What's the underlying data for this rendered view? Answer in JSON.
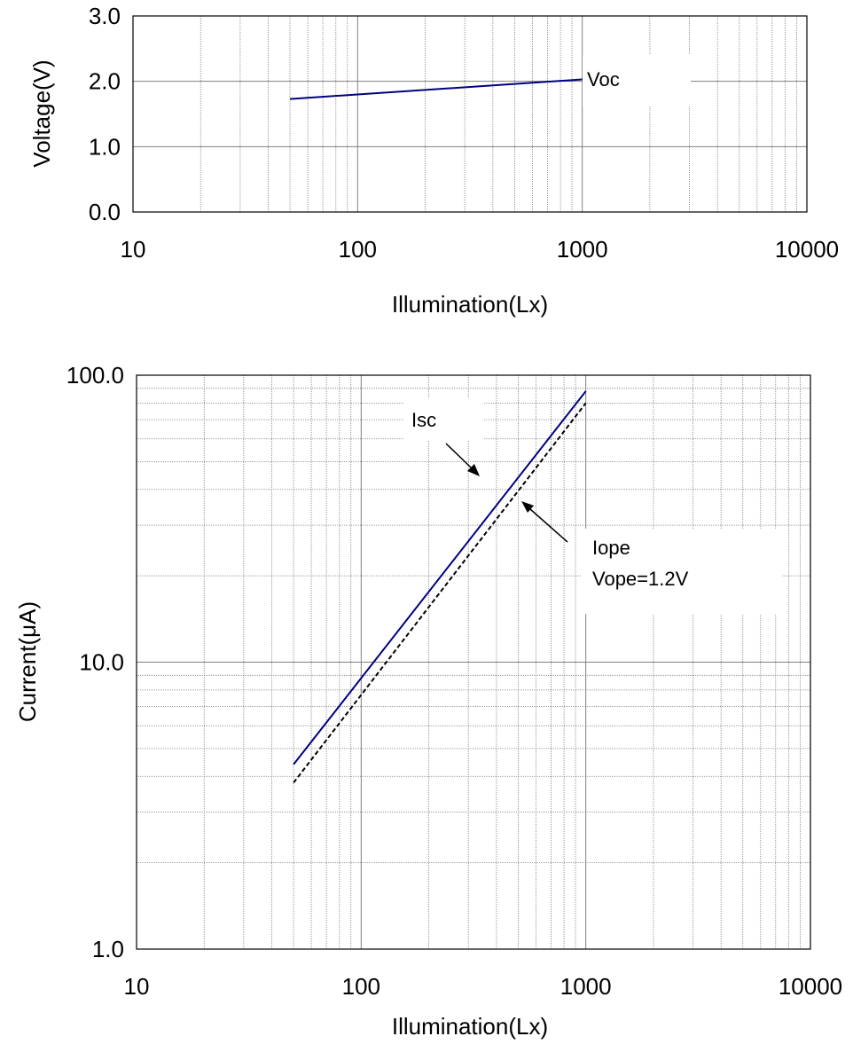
{
  "chart_data": [
    {
      "type": "line",
      "ylabel": "Voltage(V)",
      "xlabel": "Illumination(Lx)",
      "xscale": "log",
      "xlim": [
        10,
        10000
      ],
      "ylim": [
        0,
        3
      ],
      "xticks": [
        "10",
        "100",
        "1000",
        "10000"
      ],
      "yticks": [
        "0.0",
        "1.0",
        "2.0",
        "3.0"
      ],
      "grid": true,
      "series": [
        {
          "name": "Voc",
          "x": [
            50,
            1000
          ],
          "y": [
            1.73,
            2.03
          ],
          "color": "#000080",
          "style": "solid"
        }
      ]
    },
    {
      "type": "line",
      "ylabel": "Current(μA)",
      "xlabel": "Illumination(Lx)",
      "xscale": "log",
      "yscale": "log",
      "xlim": [
        10,
        10000
      ],
      "ylim": [
        1,
        100
      ],
      "xticks": [
        "10",
        "100",
        "1000",
        "10000"
      ],
      "yticks": [
        "1.0",
        "10.0",
        "100.0"
      ],
      "grid": true,
      "series": [
        {
          "name": "Isc",
          "x": [
            50,
            1000
          ],
          "y": [
            4.4,
            88
          ],
          "color": "#000080",
          "style": "solid"
        },
        {
          "name": "Iope",
          "x": [
            50,
            1000
          ],
          "y": [
            3.8,
            80
          ],
          "color": "#000000",
          "style": "dashed"
        }
      ],
      "annotations": [
        "Isc",
        "Iope",
        "Vope=1.2V"
      ]
    }
  ]
}
